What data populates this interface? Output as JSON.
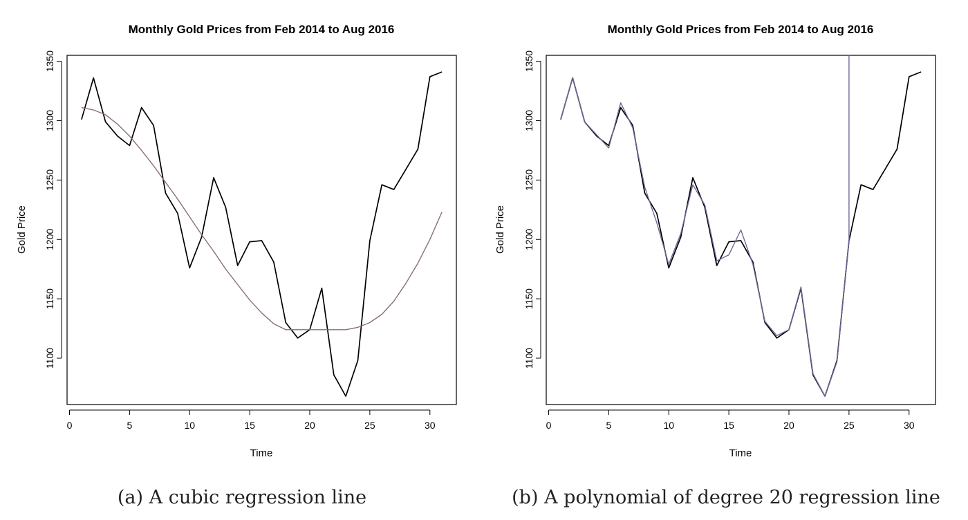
{
  "chart_data": [
    {
      "type": "line",
      "title": "Monthly Gold Prices from Feb 2014 to Aug 2016",
      "xlabel": "Time",
      "ylabel": "Gold Price",
      "xlim": [
        -0.2,
        32.2
      ],
      "ylim": [
        1061,
        1355
      ],
      "xticks": [
        0,
        5,
        10,
        15,
        20,
        25,
        30
      ],
      "yticks": [
        1100,
        1150,
        1200,
        1250,
        1300,
        1350
      ],
      "caption_tag": "(a)",
      "caption_text": "A cubic regression line",
      "series": [
        {
          "color": "#000000",
          "x": [
            1,
            2,
            3,
            4,
            5,
            6,
            7,
            8,
            9,
            10,
            11,
            12,
            13,
            14,
            15,
            16,
            17,
            18,
            19,
            20,
            21,
            22,
            23,
            24,
            25,
            26,
            27,
            28,
            29,
            30,
            31
          ],
          "values": [
            1301,
            1336,
            1299,
            1287,
            1279,
            1311,
            1296,
            1239,
            1222,
            1176,
            1202,
            1252,
            1227,
            1178,
            1198,
            1199,
            1181,
            1130,
            1117,
            1124,
            1159,
            1086,
            1068,
            1098,
            1199,
            1246,
            1242,
            1259,
            1276,
            1337,
            1341
          ]
        },
        {
          "color": "#8b6f6f",
          "x": [
            1,
            2,
            3,
            4,
            5,
            6,
            7,
            8,
            9,
            10,
            11,
            12,
            13,
            14,
            15,
            16,
            17,
            18,
            19,
            20,
            21,
            22,
            23,
            24,
            25,
            26,
            27,
            28,
            29,
            30,
            31
          ],
          "values": [
            1311,
            1309,
            1305,
            1297,
            1287,
            1275,
            1262,
            1248,
            1234,
            1219,
            1204,
            1190,
            1175,
            1162,
            1149,
            1138,
            1129,
            1124,
            1124,
            1124,
            1124,
            1124,
            1124,
            1126,
            1130,
            1137,
            1148,
            1163,
            1180,
            1200,
            1223
          ]
        }
      ]
    },
    {
      "type": "line",
      "title": "Monthly Gold Prices from Feb 2014 to Aug 2016",
      "xlabel": "Time",
      "ylabel": "Gold Price",
      "xlim": [
        -0.2,
        32.2
      ],
      "ylim": [
        1061,
        1355
      ],
      "xticks": [
        0,
        5,
        10,
        15,
        20,
        25,
        30
      ],
      "yticks": [
        1100,
        1150,
        1200,
        1250,
        1300,
        1350
      ],
      "caption_tag": "(b)",
      "caption_text": "A polynomial of degree 20 regression line",
      "series": [
        {
          "color": "#000000",
          "x": [
            1,
            2,
            3,
            4,
            5,
            6,
            7,
            8,
            9,
            10,
            11,
            12,
            13,
            14,
            15,
            16,
            17,
            18,
            19,
            20,
            21,
            22,
            23,
            24,
            25,
            26,
            27,
            28,
            29,
            30,
            31
          ],
          "values": [
            1301,
            1336,
            1299,
            1287,
            1279,
            1311,
            1296,
            1239,
            1222,
            1176,
            1202,
            1252,
            1227,
            1178,
            1198,
            1199,
            1181,
            1130,
            1117,
            1124,
            1159,
            1086,
            1068,
            1098,
            1199,
            1246,
            1242,
            1259,
            1276,
            1337,
            1341
          ]
        },
        {
          "color": "#6a6a9a",
          "x": [
            1,
            2,
            3,
            4,
            5,
            6,
            7,
            8,
            9,
            10,
            11,
            12,
            13,
            14,
            15,
            16,
            17,
            18,
            19,
            20,
            21,
            22,
            23,
            24,
            25,
            25
          ],
          "values": [
            1301,
            1336,
            1299,
            1288,
            1277,
            1315,
            1294,
            1244,
            1214,
            1179,
            1205,
            1246,
            1229,
            1182,
            1187,
            1208,
            1179,
            1131,
            1119,
            1124,
            1160,
            1087,
            1068,
            1097,
            1199,
            1355
          ]
        }
      ]
    }
  ]
}
